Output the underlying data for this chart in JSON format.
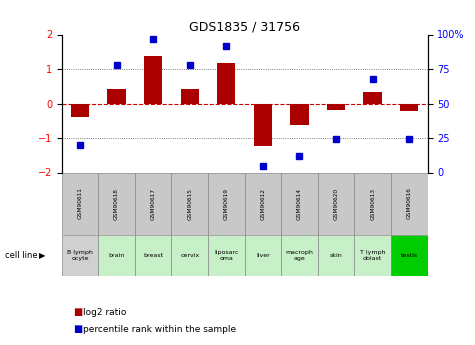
{
  "title": "GDS1835 / 31756",
  "samples": [
    "GSM90611",
    "GSM90618",
    "GSM90617",
    "GSM90615",
    "GSM90619",
    "GSM90612",
    "GSM90614",
    "GSM90620",
    "GSM90613",
    "GSM90616"
  ],
  "cell_lines": [
    "B lymph\nocyte",
    "brain",
    "breast",
    "cervix",
    "liposarc\noma",
    "liver",
    "macroph\nage",
    "skin",
    "T lymph\noblast",
    "testis"
  ],
  "cell_bg": [
    "#d0d0d0",
    "#c8f0c8",
    "#c8f0c8",
    "#c8f0c8",
    "#c8f0c8",
    "#c8f0c8",
    "#c8f0c8",
    "#c8f0c8",
    "#c8f0c8",
    "#00cc00"
  ],
  "log2_ratio": [
    -0.38,
    0.42,
    1.38,
    0.42,
    1.18,
    -1.22,
    -0.62,
    -0.18,
    0.32,
    -0.22
  ],
  "percentile_rank": [
    20,
    78,
    97,
    78,
    92,
    5,
    12,
    24,
    68,
    24
  ],
  "ylim_left": [
    -2,
    2
  ],
  "ylim_right": [
    0,
    100
  ],
  "yticks_left": [
    -2,
    -1,
    0,
    1,
    2
  ],
  "yticks_right": [
    0,
    25,
    50,
    75,
    100
  ],
  "yticklabels_right": [
    "0",
    "25",
    "50",
    "75",
    "100%"
  ],
  "bar_color": "#aa0000",
  "dot_color": "#0000cc",
  "hline_color": "#cc0000",
  "dotline_color": "#555555",
  "sample_bg": "#c8c8c8",
  "legend_red_label": "log2 ratio",
  "legend_blue_label": "percentile rank within the sample",
  "cell_line_label": "cell line"
}
